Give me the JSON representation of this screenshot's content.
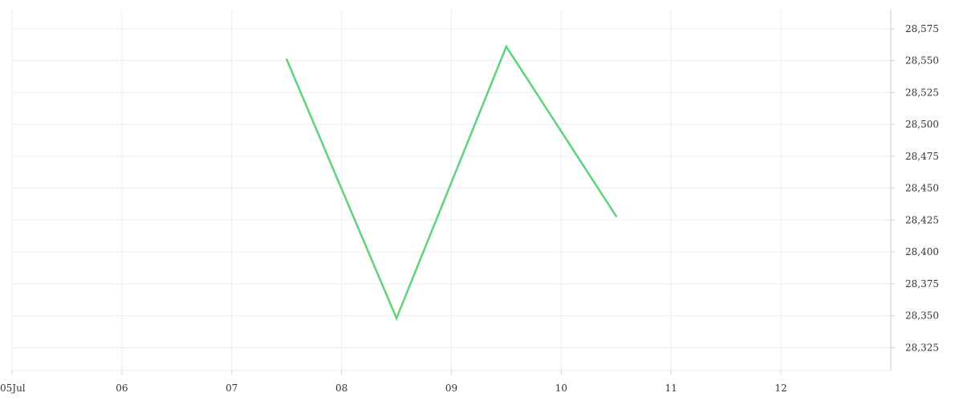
{
  "chart_data": {
    "type": "line",
    "title": "",
    "xlabel": "",
    "ylabel": "",
    "x_ticks": [
      {
        "label": "05Jul",
        "value": "2024-07-05"
      },
      {
        "label": "06",
        "value": "2024-07-06"
      },
      {
        "label": "07",
        "value": "2024-07-07"
      },
      {
        "label": "08",
        "value": "2024-07-08"
      },
      {
        "label": "09",
        "value": "2024-07-09"
      },
      {
        "label": "10",
        "value": "2024-07-10"
      },
      {
        "label": "11",
        "value": "2024-07-11"
      },
      {
        "label": "12",
        "value": "2024-07-12"
      }
    ],
    "xlim": [
      "2024-07-05",
      "2024-07-13"
    ],
    "y_ticks": [
      28325,
      28350,
      28375,
      28400,
      28425,
      28450,
      28475,
      28500,
      28525,
      28550,
      28575
    ],
    "ylim": [
      28307,
      28590
    ],
    "y_axis_position": "right",
    "grid": true,
    "legend": "none",
    "series": [
      {
        "color": "#5dd37c",
        "points": [
          {
            "x": "2024-07-07T12:00",
            "y": 28551
          },
          {
            "x": "2024-07-08T12:00",
            "y": 28348
          },
          {
            "x": "2024-07-09T12:00",
            "y": 28561
          },
          {
            "x": "2024-07-10T12:00",
            "y": 28428
          }
        ]
      }
    ]
  }
}
